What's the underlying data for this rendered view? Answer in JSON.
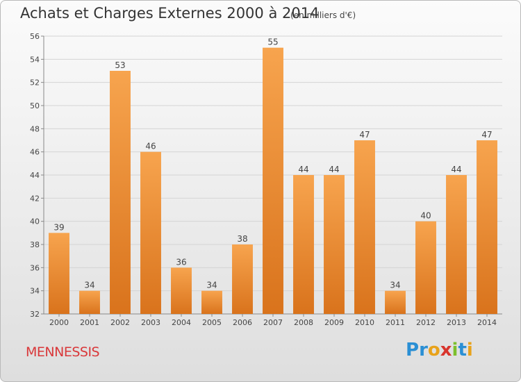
{
  "header": {
    "title": "Achats et Charges Externes 2000 à 2014",
    "subtitle": "(en milliers d'€)"
  },
  "footer": {
    "commune": "MENNESSIS",
    "logo_letters": [
      "P",
      "r",
      "o",
      "x",
      "i",
      "t",
      "i"
    ],
    "logo_colors": [
      "#2a8fd4",
      "#2a8fd4",
      "#e8a21a",
      "#d8342c",
      "#7cbf2c",
      "#2a8fd4",
      "#e8a21a"
    ]
  },
  "chart_data": {
    "type": "bar",
    "title": "Achats et Charges Externes 2000 à 2014",
    "categories": [
      "2000",
      "2001",
      "2002",
      "2003",
      "2004",
      "2005",
      "2006",
      "2007",
      "2008",
      "2009",
      "2010",
      "2011",
      "2012",
      "2013",
      "2014"
    ],
    "values": [
      39,
      34,
      53,
      46,
      36,
      34,
      38,
      55,
      44,
      44,
      47,
      34,
      40,
      44,
      47
    ],
    "ylim": [
      32,
      56
    ],
    "yticks": [
      32,
      34,
      36,
      38,
      40,
      42,
      44,
      46,
      48,
      50,
      52,
      54,
      56
    ],
    "grid": true,
    "bar_color": "#f0922e"
  }
}
